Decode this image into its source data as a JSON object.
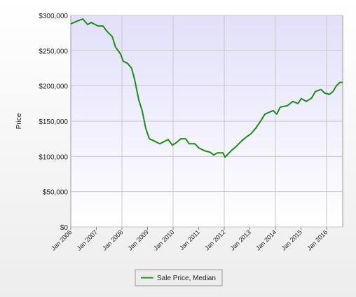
{
  "chart_data": {
    "type": "line",
    "y_label": "Price",
    "x": [
      2006.0,
      2006.25,
      2006.47,
      2006.66,
      2006.79,
      2007.07,
      2007.26,
      2007.4,
      2007.62,
      2007.75,
      2007.95,
      2008.05,
      2008.22,
      2008.38,
      2008.49,
      2008.66,
      2008.79,
      2008.93,
      2009.07,
      2009.26,
      2009.48,
      2009.81,
      2009.97,
      2010.14,
      2010.3,
      2010.49,
      2010.63,
      2010.85,
      2011.01,
      2011.23,
      2011.45,
      2011.59,
      2011.73,
      2011.95,
      2012.03,
      2012.27,
      2012.49,
      2012.68,
      2012.88,
      2013.04,
      2013.23,
      2013.42,
      2013.59,
      2013.78,
      2013.92,
      2014.05,
      2014.19,
      2014.47,
      2014.68,
      2014.88,
      2015.01,
      2015.21,
      2015.42,
      2015.56,
      2015.78,
      2015.92,
      2016.11,
      2016.25,
      2016.38,
      2016.52,
      2016.63
    ],
    "series": [
      {
        "name": "Sale Price, Median",
        "color": "#1f8a1f",
        "values": [
          288000,
          292000,
          295000,
          287000,
          290000,
          285000,
          285000,
          278000,
          270000,
          255000,
          245000,
          235000,
          232000,
          225000,
          210000,
          180000,
          165000,
          140000,
          125000,
          122000,
          118000,
          124000,
          116000,
          120000,
          125000,
          125000,
          118000,
          118000,
          112000,
          108000,
          106000,
          102000,
          105000,
          105000,
          99000,
          108000,
          115000,
          122000,
          128000,
          132000,
          140000,
          150000,
          160000,
          163000,
          165000,
          160000,
          170000,
          172000,
          178000,
          175000,
          182000,
          178000,
          183000,
          192000,
          195000,
          190000,
          188000,
          192000,
          200000,
          205000,
          205000
        ]
      }
    ],
    "xlim": [
      2006,
      2016.63
    ],
    "xticks": [
      {
        "value": 2006,
        "label": "Jan 2006"
      },
      {
        "value": 2007,
        "label": "Jan 2007"
      },
      {
        "value": 2008,
        "label": "Jan 2008"
      },
      {
        "value": 2009,
        "label": "Jan 2009"
      },
      {
        "value": 2010,
        "label": "Jan 2010"
      },
      {
        "value": 2011,
        "label": "Jan 2011"
      },
      {
        "value": 2012,
        "label": "Jan 2012"
      },
      {
        "value": 2013,
        "label": "Jan 2013"
      },
      {
        "value": 2014,
        "label": "Jan 2014"
      },
      {
        "value": 2015,
        "label": "Jan 2015"
      },
      {
        "value": 2016,
        "label": "Jan 2016"
      }
    ],
    "ylim": [
      0,
      300000
    ],
    "yticks": [
      {
        "value": 0,
        "label": "$0"
      },
      {
        "value": 50000,
        "label": "$50,000"
      },
      {
        "value": 100000,
        "label": "$100,000"
      },
      {
        "value": 150000,
        "label": "$150,000"
      },
      {
        "value": 200000,
        "label": "$200,000"
      },
      {
        "value": 250000,
        "label": "$250,000"
      },
      {
        "value": 300000,
        "label": "$300,000"
      }
    ],
    "grid": true,
    "legend": "bottom"
  }
}
